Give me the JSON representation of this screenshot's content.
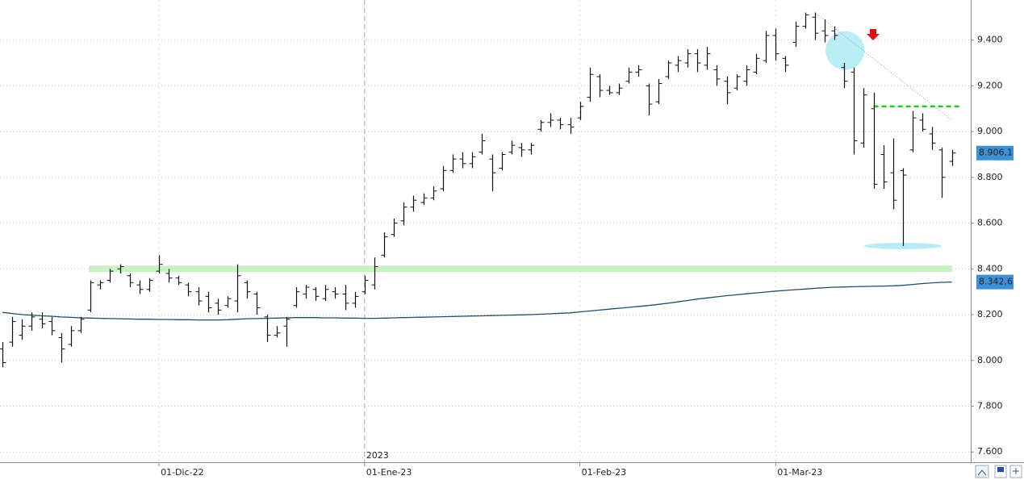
{
  "chart_data": {
    "type": "ohlc",
    "categories": [
      null,
      null,
      null,
      null,
      null,
      null,
      null,
      null,
      null,
      null,
      null,
      null,
      null,
      null,
      null,
      null,
      "01-Dic-22",
      null,
      null,
      null,
      null,
      null,
      null,
      null,
      null,
      null,
      null,
      null,
      null,
      null,
      null,
      null,
      null,
      null,
      null,
      null,
      null,
      "01-Ene-23",
      null,
      null,
      null,
      null,
      null,
      null,
      null,
      null,
      null,
      null,
      null,
      null,
      null,
      null,
      null,
      null,
      null,
      null,
      null,
      null,
      null,
      "01-Feb-23",
      null,
      null,
      null,
      null,
      null,
      null,
      null,
      null,
      null,
      null,
      null,
      null,
      null,
      null,
      null,
      null,
      null,
      null,
      null,
      "01-Mar-23",
      null,
      null,
      null,
      null,
      null,
      null,
      null,
      null,
      null,
      null,
      null,
      null,
      null,
      null,
      null,
      null,
      null,
      null
    ],
    "year_label": "2023",
    "color": "#111111",
    "high": [
      8080,
      8190,
      8180,
      8210,
      8210,
      8190,
      8120,
      8150,
      8190,
      8350,
      8350,
      8400,
      8420,
      8380,
      8350,
      8360,
      8460,
      8400,
      8370,
      8340,
      8320,
      8300,
      8270,
      8280,
      8420,
      8350,
      8300,
      8200,
      8150,
      8190,
      8320,
      8330,
      8320,
      8330,
      8320,
      8330,
      8300,
      8370,
      8450,
      8560,
      8620,
      8690,
      8720,
      8730,
      8760,
      8850,
      8900,
      8910,
      8910,
      8990,
      8900,
      8910,
      8960,
      8950,
      8950,
      9050,
      9080,
      9060,
      9060,
      9130,
      9280,
      9250,
      9200,
      9210,
      9280,
      9290,
      9210,
      9230,
      9310,
      9330,
      9360,
      9360,
      9370,
      9290,
      9240,
      9250,
      9290,
      9340,
      9440,
      9450,
      9330,
      9480,
      9520,
      9520,
      9490,
      9460,
      9300,
      9280,
      9190,
      9170,
      8940,
      8970,
      8840,
      9090,
      9080,
      9020,
      8930,
      8920
    ],
    "low": [
      7970,
      8060,
      8090,
      8130,
      8140,
      8110,
      7990,
      8060,
      8120,
      8210,
      8310,
      8340,
      8380,
      8320,
      8290,
      8300,
      8380,
      8340,
      8330,
      8280,
      8240,
      8210,
      8200,
      8230,
      8210,
      8270,
      8200,
      8080,
      8100,
      8060,
      8230,
      8270,
      8260,
      8260,
      8270,
      8220,
      8230,
      8290,
      8310,
      8450,
      8540,
      8590,
      8650,
      8680,
      8700,
      8740,
      8820,
      8840,
      8840,
      8900,
      8740,
      8830,
      8900,
      8890,
      8900,
      9000,
      9020,
      9010,
      8990,
      9050,
      9130,
      9150,
      9160,
      9160,
      9210,
      9240,
      9070,
      9120,
      9230,
      9260,
      9280,
      9260,
      9270,
      9200,
      9120,
      9180,
      9200,
      9250,
      9300,
      9310,
      9260,
      9370,
      9450,
      9400,
      9390,
      9400,
      9190,
      8900,
      8930,
      8750,
      8750,
      8660,
      8500,
      8910,
      9000,
      8920,
      8710,
      8850
    ],
    "open": [
      8050,
      8080,
      8110,
      8150,
      8180,
      8170,
      8100,
      8070,
      8130,
      8220,
      8330,
      8350,
      8400,
      8370,
      8330,
      8310,
      8390,
      8380,
      8360,
      8330,
      8300,
      8280,
      8250,
      8240,
      8260,
      8340,
      8290,
      8190,
      8110,
      8150,
      8240,
      8290,
      8310,
      8270,
      8300,
      8290,
      8250,
      8300,
      8330,
      8460,
      8550,
      8610,
      8670,
      8690,
      8710,
      8750,
      8830,
      8880,
      8860,
      8910,
      8880,
      8840,
      8910,
      8930,
      8920,
      9010,
      9040,
      9050,
      9030,
      9060,
      9150,
      9240,
      9180,
      9170,
      9220,
      9260,
      9200,
      9130,
      9240,
      9290,
      9300,
      9340,
      9290,
      9270,
      9220,
      9190,
      9220,
      9260,
      9310,
      9420,
      9320,
      9390,
      9460,
      9500,
      9440,
      9440,
      9280,
      9260,
      8950,
      9100,
      8900,
      8820,
      8830,
      8920,
      9050,
      8990,
      8920,
      8870
    ],
    "close": [
      7990,
      8170,
      8150,
      8190,
      8160,
      8130,
      8050,
      8130,
      8180,
      8340,
      8340,
      8390,
      8410,
      8340,
      8310,
      8350,
      8420,
      8360,
      8340,
      8300,
      8260,
      8230,
      8220,
      8270,
      8370,
      8300,
      8230,
      8110,
      8120,
      8180,
      8300,
      8320,
      8280,
      8310,
      8290,
      8250,
      8280,
      8350,
      8410,
      8540,
      8600,
      8670,
      8700,
      8710,
      8740,
      8830,
      8880,
      8860,
      8890,
      8960,
      8820,
      8900,
      8940,
      8920,
      8940,
      9040,
      9050,
      9030,
      9020,
      9110,
      9250,
      9180,
      9170,
      9190,
      9260,
      9270,
      9120,
      9210,
      9300,
      9310,
      9340,
      9300,
      9340,
      9230,
      9170,
      9240,
      9270,
      9320,
      9420,
      9340,
      9290,
      9460,
      9510,
      9430,
      9420,
      9420,
      9220,
      8960,
      9160,
      8770,
      8780,
      8700,
      8810,
      9060,
      9010,
      8950,
      8800,
      8906.1
    ],
    "ma": {
      "color": "#1d4f66",
      "values": [
        8210,
        8205,
        8200,
        8198,
        8195,
        8193,
        8190,
        8188,
        8186,
        8185,
        8184,
        8183,
        8182,
        8181,
        8180,
        8180,
        8179,
        8179,
        8178,
        8178,
        8177,
        8177,
        8177,
        8178,
        8180,
        8182,
        8183,
        8184,
        8185,
        8186,
        8187,
        8187,
        8187,
        8186,
        8186,
        8185,
        8185,
        8184,
        8184,
        8185,
        8186,
        8187,
        8188,
        8189,
        8190,
        8191,
        8192,
        8193,
        8194,
        8195,
        8196,
        8197,
        8198,
        8199,
        8200,
        8202,
        8204,
        8206,
        8208,
        8212,
        8216,
        8220,
        8224,
        8228,
        8232,
        8236,
        8240,
        8245,
        8250,
        8256,
        8262,
        8268,
        8273,
        8278,
        8283,
        8287,
        8291,
        8295,
        8299,
        8303,
        8306,
        8309,
        8312,
        8315,
        8318,
        8320,
        8321,
        8322,
        8323,
        8324,
        8325,
        8326,
        8328,
        8332,
        8336,
        8339,
        8341,
        8342.6
      ]
    },
    "support": 8400,
    "resistance": 9110,
    "low_marker": 8500,
    "trendline": [
      9520,
      9050
    ],
    "price_tags": [
      {
        "value": 8906.1,
        "label": "8.906,1"
      },
      {
        "value": 8342.6,
        "label": "8.342,6"
      }
    ],
    "ylim": [
      7555,
      9575
    ],
    "yticks": [
      {
        "value": 7600,
        "label": "7.600"
      },
      {
        "value": 7800,
        "label": "7.800"
      },
      {
        "value": 8000,
        "label": "8.000"
      },
      {
        "value": 8200,
        "label": "8.200"
      },
      {
        "value": 8400,
        "label": "8.400"
      },
      {
        "value": 8600,
        "label": "8.600"
      },
      {
        "value": 8800,
        "label": "8.800"
      },
      {
        "value": 9000,
        "label": "9.000"
      },
      {
        "value": 9200,
        "label": "9.200"
      },
      {
        "value": 9400,
        "label": "9.400"
      }
    ],
    "grid": true
  }
}
